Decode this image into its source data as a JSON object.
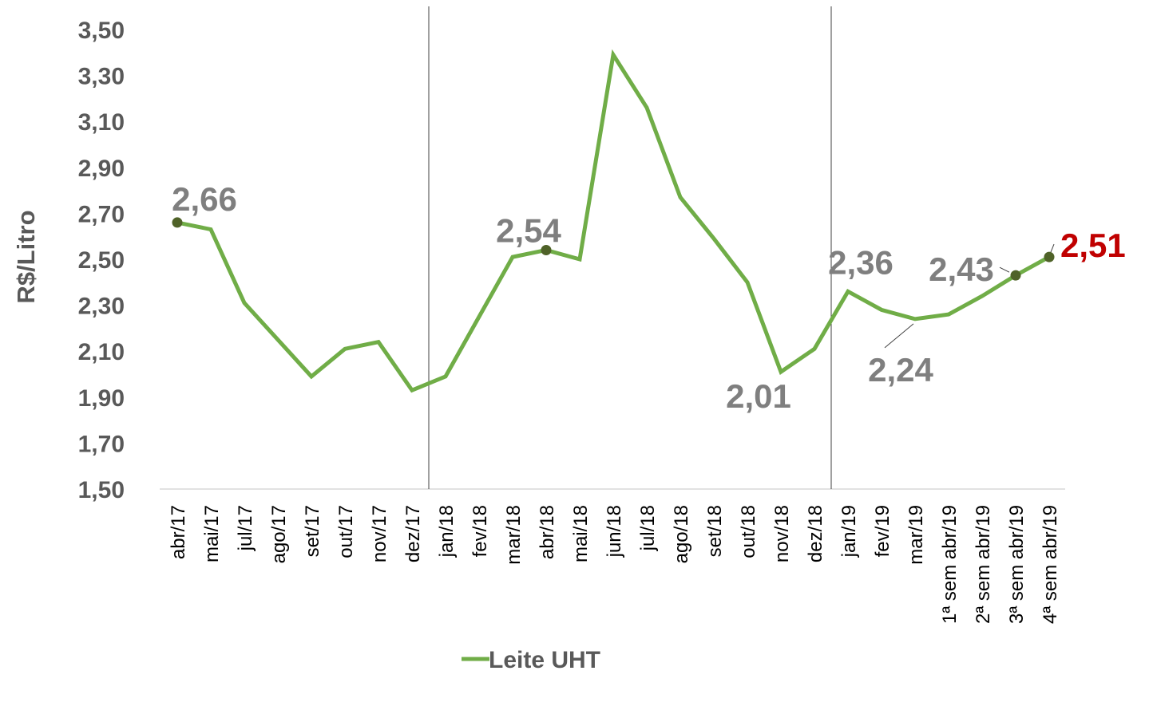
{
  "chart_data": {
    "type": "line",
    "ylabel": "R$/Litro",
    "ylim": [
      1.5,
      3.5
    ],
    "yticks": [
      "1,50",
      "1,70",
      "1,90",
      "2,10",
      "2,30",
      "2,50",
      "2,70",
      "2,90",
      "3,10",
      "3,30",
      "3,50"
    ],
    "categories": [
      "abr/17",
      "mai/17",
      "jul/17",
      "ago/17",
      "set/17",
      "out/17",
      "nov/17",
      "dez/17",
      "jan/18",
      "fev/18",
      "mar/18",
      "abr/18",
      "mai/18",
      "jun/18",
      "jul/18",
      "ago/18",
      "set/18",
      "out/18",
      "nov/18",
      "dez/18",
      "jan/19",
      "fev/19",
      "mar/19",
      "1ª sem abr/19",
      "2ª sem abr/19",
      "3ª sem abr/19",
      "4ª sem abr/19"
    ],
    "series": [
      {
        "name": "Leite UHT",
        "color": "#70ad47",
        "values": [
          2.66,
          2.63,
          2.31,
          2.15,
          1.99,
          2.11,
          2.14,
          1.93,
          1.99,
          2.25,
          2.51,
          2.54,
          2.5,
          3.39,
          3.16,
          2.77,
          2.59,
          2.4,
          2.01,
          2.11,
          2.36,
          2.28,
          2.24,
          2.26,
          2.34,
          2.43,
          2.51
        ]
      }
    ],
    "data_labels": [
      {
        "index": 0,
        "text": "2,66",
        "color": "#7f7f7f"
      },
      {
        "index": 11,
        "text": "2,54",
        "color": "#7f7f7f"
      },
      {
        "index": 18,
        "text": "2,01",
        "color": "#7f7f7f"
      },
      {
        "index": 20,
        "text": "2,36",
        "color": "#7f7f7f"
      },
      {
        "index": 22,
        "text": "2,24",
        "color": "#7f7f7f"
      },
      {
        "index": 25,
        "text": "2,43",
        "color": "#7f7f7f"
      },
      {
        "index": 26,
        "text": "2,51",
        "color": "#c00000"
      }
    ],
    "marker_color": "#4f6228",
    "year_dividers_after": [
      7,
      19
    ],
    "legend": {
      "label": "Leite UHT",
      "position": "bottom"
    }
  }
}
